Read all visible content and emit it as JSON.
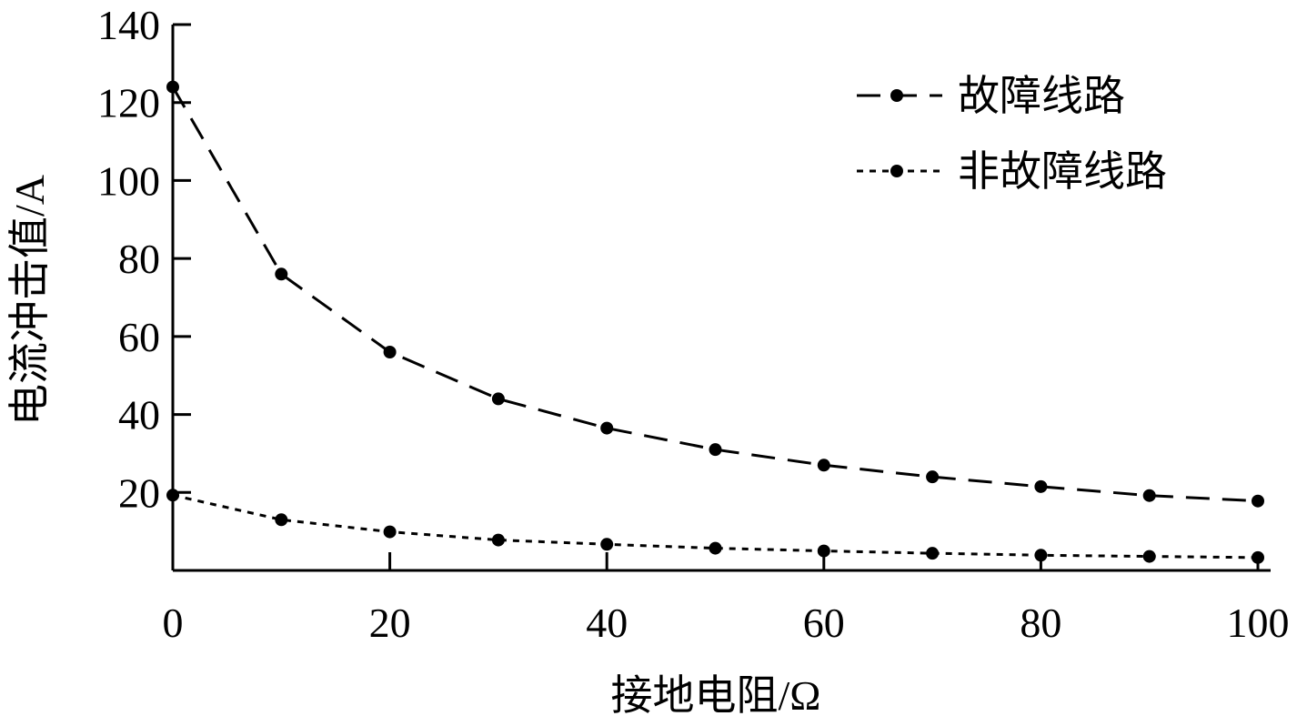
{
  "chart_data": {
    "type": "line",
    "title": "",
    "xlabel": "接地电阻/Ω",
    "ylabel": "电流冲击值/A",
    "xlim": [
      0,
      100
    ],
    "ylim": [
      0,
      140
    ],
    "x_ticks": [
      "0",
      "20",
      "40",
      "60",
      "80",
      "100"
    ],
    "y_ticks": [
      "20",
      "40",
      "60",
      "80",
      "100",
      "120",
      "140"
    ],
    "grid": false,
    "legend_position": "top-right",
    "series": [
      {
        "name": "故障线路",
        "style": "dashed",
        "color": "#000000",
        "x": [
          0,
          10,
          20,
          30,
          40,
          50,
          60,
          70,
          80,
          90,
          100
        ],
        "y": [
          124,
          76,
          56,
          44,
          36.5,
          31,
          27,
          24,
          21.5,
          19.2,
          17.8
        ]
      },
      {
        "name": "非故障线路",
        "style": "dotted",
        "color": "#000000",
        "x": [
          0,
          10,
          20,
          30,
          40,
          50,
          60,
          70,
          80,
          90,
          100
        ],
        "y": [
          19.3,
          13,
          9.9,
          7.8,
          6.7,
          5.7,
          5,
          4.4,
          3.9,
          3.6,
          3.3
        ]
      }
    ]
  }
}
